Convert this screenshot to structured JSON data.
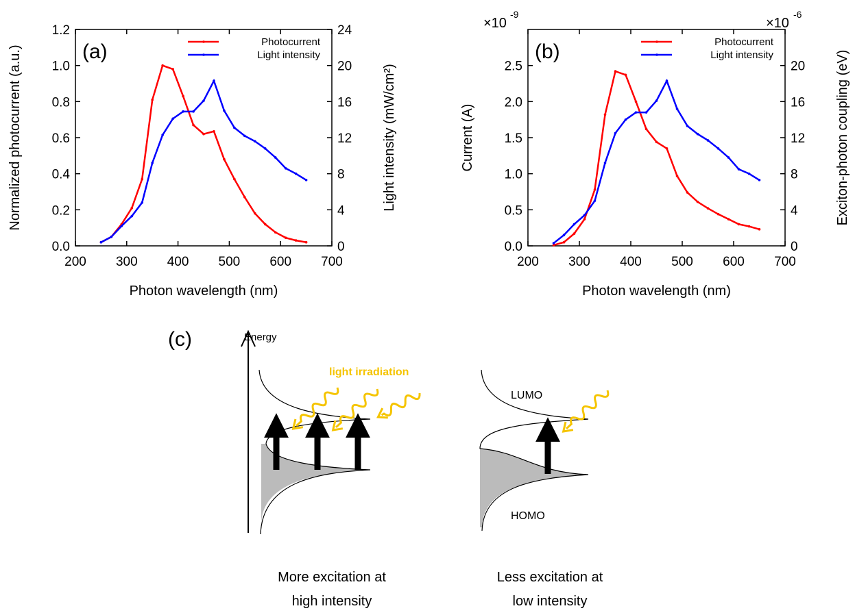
{
  "chart_data": [
    {
      "type": "line",
      "panel_label": "(a)",
      "x_label": "Photon wavelength (nm)",
      "y_label": "Normalized photocurrent (a.u.)",
      "y2_label": "Light intensity (mW/cm²)",
      "x": [
        250,
        270,
        290,
        310,
        330,
        350,
        370,
        390,
        410,
        430,
        450,
        470,
        490,
        510,
        530,
        550,
        570,
        590,
        610,
        630,
        650
      ],
      "series": [
        {
          "name": "Photocurrent",
          "color": "#ff0000",
          "values": [
            0.02,
            0.05,
            0.12,
            0.21,
            0.37,
            0.81,
            1.0,
            0.98,
            0.83,
            0.67,
            0.62,
            0.635,
            0.48,
            0.37,
            0.27,
            0.18,
            0.12,
            0.075,
            0.045,
            0.03,
            0.02
          ]
        },
        {
          "name": "Light intensity",
          "color": "#0000ff",
          "axis": "y2",
          "values": [
            0.4,
            1.0,
            2.2,
            3.3,
            4.8,
            9.2,
            12.3,
            14.1,
            14.9,
            14.9,
            16.1,
            18.3,
            15.0,
            13.1,
            12.2,
            11.6,
            10.8,
            9.8,
            8.6,
            8.0,
            7.3
          ]
        }
      ],
      "xlim": [
        200,
        700
      ],
      "xticks": [
        200,
        300,
        400,
        500,
        600,
        700
      ],
      "ylim": [
        0,
        1.2
      ],
      "yticks": [
        {
          "value": 0,
          "label": "0.0"
        },
        0.2,
        0.4,
        0.6,
        0.8,
        {
          "value": 1,
          "label": "1.0"
        },
        1.2
      ],
      "y2lim": [
        0,
        24
      ],
      "y2ticks": [
        0,
        4,
        8,
        12,
        16,
        20,
        24
      ],
      "legend": "upper right",
      "grid": false
    },
    {
      "type": "line",
      "panel_label": "(b)",
      "x_label": "Photon wavelength (nm)",
      "y_label": "Current (A)",
      "y2_label": "Exciton-photon coupling (eV)",
      "y_multiplier": "×10",
      "y_exponent": "-9",
      "y2_multiplier": "×10",
      "y2_exponent": "-6",
      "x": [
        250,
        270,
        290,
        310,
        330,
        350,
        370,
        390,
        410,
        430,
        450,
        470,
        490,
        510,
        530,
        550,
        570,
        590,
        610,
        630,
        650
      ],
      "series": [
        {
          "name": "Photocurrent",
          "color": "#ff0000",
          "values": [
            0.01,
            0.05,
            0.17,
            0.37,
            0.78,
            1.82,
            2.42,
            2.37,
            2.0,
            1.62,
            1.44,
            1.35,
            0.97,
            0.74,
            0.61,
            0.52,
            0.44,
            0.37,
            0.3,
            0.27,
            0.23
          ]
        },
        {
          "name": "Light intensity",
          "color": "#0000ff",
          "axis": "y2",
          "values": [
            0.3,
            1.2,
            2.4,
            3.4,
            5.0,
            9.2,
            12.5,
            14.0,
            14.8,
            14.8,
            16.1,
            18.3,
            15.2,
            13.3,
            12.4,
            11.7,
            10.8,
            9.8,
            8.5,
            8.0,
            7.3
          ]
        }
      ],
      "xlim": [
        200,
        700
      ],
      "xticks": [
        200,
        300,
        400,
        500,
        600,
        700
      ],
      "ylim": [
        0,
        3
      ],
      "yticks": [
        {
          "value": 0,
          "label": "0.0"
        },
        0.5,
        {
          "value": 1,
          "label": "1.0"
        },
        1.5,
        {
          "value": 2,
          "label": "2.0"
        },
        2.5
      ],
      "y2lim": [
        0,
        24
      ],
      "y2ticks": [
        0,
        4,
        8,
        12,
        16,
        20
      ],
      "legend": "upper right",
      "grid": false
    }
  ],
  "diagram": {
    "panel_label": "(c)",
    "axis_label": "Energy",
    "irradiation_label": "light irradiation",
    "lumo_label": "LUMO",
    "homo_label": "HOMO",
    "captions": [
      [
        "More excitation at",
        "high intensity"
      ],
      [
        "Less excitation at",
        "low intensity"
      ]
    ]
  }
}
